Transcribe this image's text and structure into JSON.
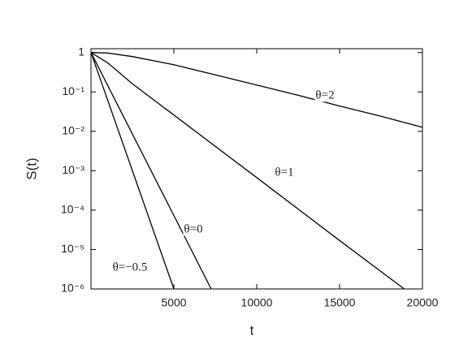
{
  "chart_data": {
    "type": "line",
    "x_label": "t",
    "y_label": "S(t)",
    "xlim": [
      0,
      20000
    ],
    "xticks": [
      5000,
      10000,
      15000,
      20000
    ],
    "ylim": [
      1e-06,
      1.25
    ],
    "ylog": true,
    "yticks": [
      {
        "value": 1,
        "label": "1"
      },
      {
        "value": 0.1,
        "label": "10⁻¹"
      },
      {
        "value": 0.01,
        "label": "10⁻²"
      },
      {
        "value": 0.001,
        "label": "10⁻³"
      },
      {
        "value": 0.0001,
        "label": "10⁻⁴"
      },
      {
        "value": 1e-05,
        "label": "10⁻⁵"
      },
      {
        "value": 1e-06,
        "label": "10⁻⁶"
      }
    ],
    "series": [
      {
        "name": "θ=2",
        "color": "#000000",
        "x": [
          0,
          1000,
          2500,
          5000,
          7500,
          10000,
          12500,
          15000,
          17500,
          20000
        ],
        "values": [
          1,
          0.97,
          0.79,
          0.49,
          0.27,
          0.15,
          0.082,
          0.044,
          0.024,
          0.0126
        ]
      },
      {
        "name": "θ=1",
        "color": "#000000",
        "x": [
          0,
          1000,
          2500,
          5000,
          10000,
          15000,
          18900
        ],
        "values": [
          1,
          0.55,
          0.16,
          0.026,
          0.00067,
          1.7e-05,
          1e-06
        ]
      },
      {
        "name": "θ=0",
        "color": "#000000",
        "x": [
          0,
          2500,
          5000,
          7250
        ],
        "values": [
          1,
          0.0085,
          7.3e-05,
          1e-06
        ]
      },
      {
        "name": "θ=−0.5",
        "color": "#000000",
        "x": [
          0,
          2500,
          5000
        ],
        "values": [
          1,
          0.001,
          1e-06
        ]
      }
    ]
  }
}
